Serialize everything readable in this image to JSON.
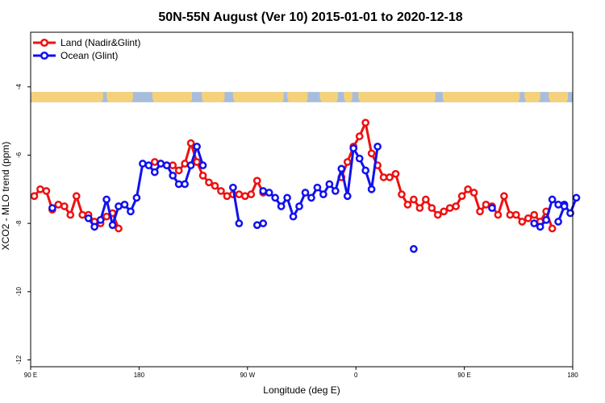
{
  "chart_data": {
    "type": "line",
    "title": "50N-55N August (Ver 10)   2015-01-01 to 2020-12-18",
    "xlabel": "Longitude (deg E)",
    "ylabel": "XCO2 - MLO trend (ppm)",
    "xlim": [
      90,
      540
    ],
    "ylim": [
      -12.2,
      -2.4
    ],
    "x_ticks": [
      {
        "value": 90,
        "label": "90 E"
      },
      {
        "value": 180,
        "label": "180"
      },
      {
        "value": 270,
        "label": "90 W"
      },
      {
        "value": 360,
        "label": "0"
      },
      {
        "value": 450,
        "label": "90 E"
      },
      {
        "value": 540,
        "label": "180"
      }
    ],
    "y_ticks": [
      {
        "value": -4,
        "label": "-4"
      },
      {
        "value": -6,
        "label": "-6"
      },
      {
        "value": -8,
        "label": "-8"
      },
      {
        "value": -10,
        "label": "-10"
      },
      {
        "value": -12,
        "label": "-12"
      }
    ],
    "legend_position": "top-left",
    "grid": false,
    "map_strip": {
      "y_top": -4.15,
      "y_bottom": -4.45,
      "ocean_color": "#a8bcdc",
      "land_color": "#f5d27a"
    },
    "series": [
      {
        "name": "Land (Nadir&Glint)",
        "color": "#ee1111",
        "segments": [
          [
            [
              93,
              -7.2
            ],
            [
              98,
              -7.0
            ],
            [
              103,
              -7.05
            ],
            [
              108,
              -7.6
            ],
            [
              113,
              -7.45
            ],
            [
              118,
              -7.5
            ],
            [
              123,
              -7.75
            ],
            [
              128,
              -7.2
            ],
            [
              133,
              -7.75
            ],
            [
              138,
              -7.75
            ],
            [
              143,
              -7.95
            ],
            [
              148,
              -8.0
            ],
            [
              153,
              -7.8
            ],
            [
              158,
              -7.7
            ],
            [
              163,
              -8.15
            ]
          ],
          [
            [
              193,
              -6.2
            ],
            [
              198,
              -6.25
            ],
            [
              203,
              -6.3
            ],
            [
              208,
              -6.3
            ],
            [
              213,
              -6.45
            ],
            [
              218,
              -6.25
            ],
            [
              223,
              -5.65
            ],
            [
              228,
              -6.2
            ],
            [
              233,
              -6.6
            ],
            [
              238,
              -6.8
            ],
            [
              243,
              -6.9
            ],
            [
              248,
              -7.05
            ],
            [
              253,
              -7.2
            ],
            [
              258,
              -7.15
            ],
            [
              263,
              -7.15
            ],
            [
              268,
              -7.2
            ],
            [
              273,
              -7.15
            ],
            [
              278,
              -6.75
            ],
            [
              283,
              -7.1
            ]
          ],
          [
            [
              348,
              -6.65
            ],
            [
              353,
              -6.2
            ],
            [
              358,
              -5.75
            ],
            [
              363,
              -5.45
            ],
            [
              368,
              -5.05
            ],
            [
              373,
              -5.95
            ],
            [
              378,
              -6.3
            ],
            [
              383,
              -6.65
            ],
            [
              388,
              -6.65
            ],
            [
              393,
              -6.55
            ],
            [
              398,
              -7.15
            ],
            [
              403,
              -7.45
            ],
            [
              408,
              -7.3
            ],
            [
              413,
              -7.55
            ],
            [
              418,
              -7.3
            ],
            [
              423,
              -7.55
            ],
            [
              428,
              -7.75
            ],
            [
              433,
              -7.65
            ],
            [
              438,
              -7.55
            ],
            [
              443,
              -7.5
            ],
            [
              448,
              -7.2
            ],
            [
              453,
              -7.0
            ],
            [
              458,
              -7.1
            ],
            [
              463,
              -7.65
            ],
            [
              468,
              -7.45
            ],
            [
              473,
              -7.5
            ],
            [
              478,
              -7.75
            ],
            [
              483,
              -7.2
            ],
            [
              488,
              -7.75
            ],
            [
              493,
              -7.75
            ],
            [
              498,
              -7.95
            ],
            [
              503,
              -7.85
            ],
            [
              508,
              -7.75
            ],
            [
              513,
              -7.95
            ],
            [
              518,
              -7.65
            ],
            [
              523,
              -8.15
            ]
          ]
        ]
      },
      {
        "name": "Ocean (Glint)",
        "color": "#1111ee",
        "segments": [
          [
            [
              108,
              -7.55
            ]
          ],
          [
            [
              138,
              -7.85
            ],
            [
              143,
              -8.1
            ],
            [
              148,
              -7.9
            ],
            [
              153,
              -7.3
            ],
            [
              158,
              -8.05
            ],
            [
              163,
              -7.5
            ],
            [
              168,
              -7.45
            ],
            [
              173,
              -7.65
            ],
            [
              178,
              -7.25
            ],
            [
              183,
              -6.25
            ],
            [
              188,
              -6.3
            ],
            [
              193,
              -6.5
            ],
            [
              198,
              -6.25
            ],
            [
              203,
              -6.3
            ],
            [
              208,
              -6.6
            ],
            [
              213,
              -6.85
            ],
            [
              218,
              -6.85
            ],
            [
              223,
              -6.3
            ],
            [
              228,
              -5.75
            ],
            [
              233,
              -6.3
            ]
          ],
          [
            [
              258,
              -6.95
            ],
            [
              263,
              -8.0
            ]
          ],
          [
            [
              278,
              -8.05
            ],
            [
              283,
              -8.0
            ]
          ],
          [
            [
              283,
              -7.05
            ],
            [
              288,
              -7.1
            ],
            [
              293,
              -7.25
            ],
            [
              298,
              -7.5
            ],
            [
              303,
              -7.25
            ],
            [
              308,
              -7.8
            ],
            [
              313,
              -7.5
            ],
            [
              318,
              -7.1
            ],
            [
              323,
              -7.25
            ],
            [
              328,
              -6.95
            ],
            [
              333,
              -7.15
            ],
            [
              338,
              -6.85
            ],
            [
              343,
              -7.05
            ],
            [
              348,
              -6.4
            ],
            [
              353,
              -7.2
            ],
            [
              358,
              -5.8
            ],
            [
              363,
              -6.1
            ],
            [
              368,
              -6.45
            ],
            [
              373,
              -7.0
            ],
            [
              378,
              -5.75
            ]
          ],
          [
            [
              408,
              -8.75
            ]
          ],
          [
            [
              473,
              -7.55
            ]
          ],
          [
            [
              508,
              -8.0
            ],
            [
              513,
              -8.1
            ],
            [
              518,
              -7.9
            ],
            [
              523,
              -7.3
            ],
            [
              528,
              -7.45
            ],
            [
              533,
              -7.45
            ],
            [
              538,
              -7.7
            ],
            [
              543,
              -7.25
            ]
          ],
          [
            [
              528,
              -7.95
            ],
            [
              533,
              -7.5
            ]
          ]
        ]
      }
    ]
  }
}
